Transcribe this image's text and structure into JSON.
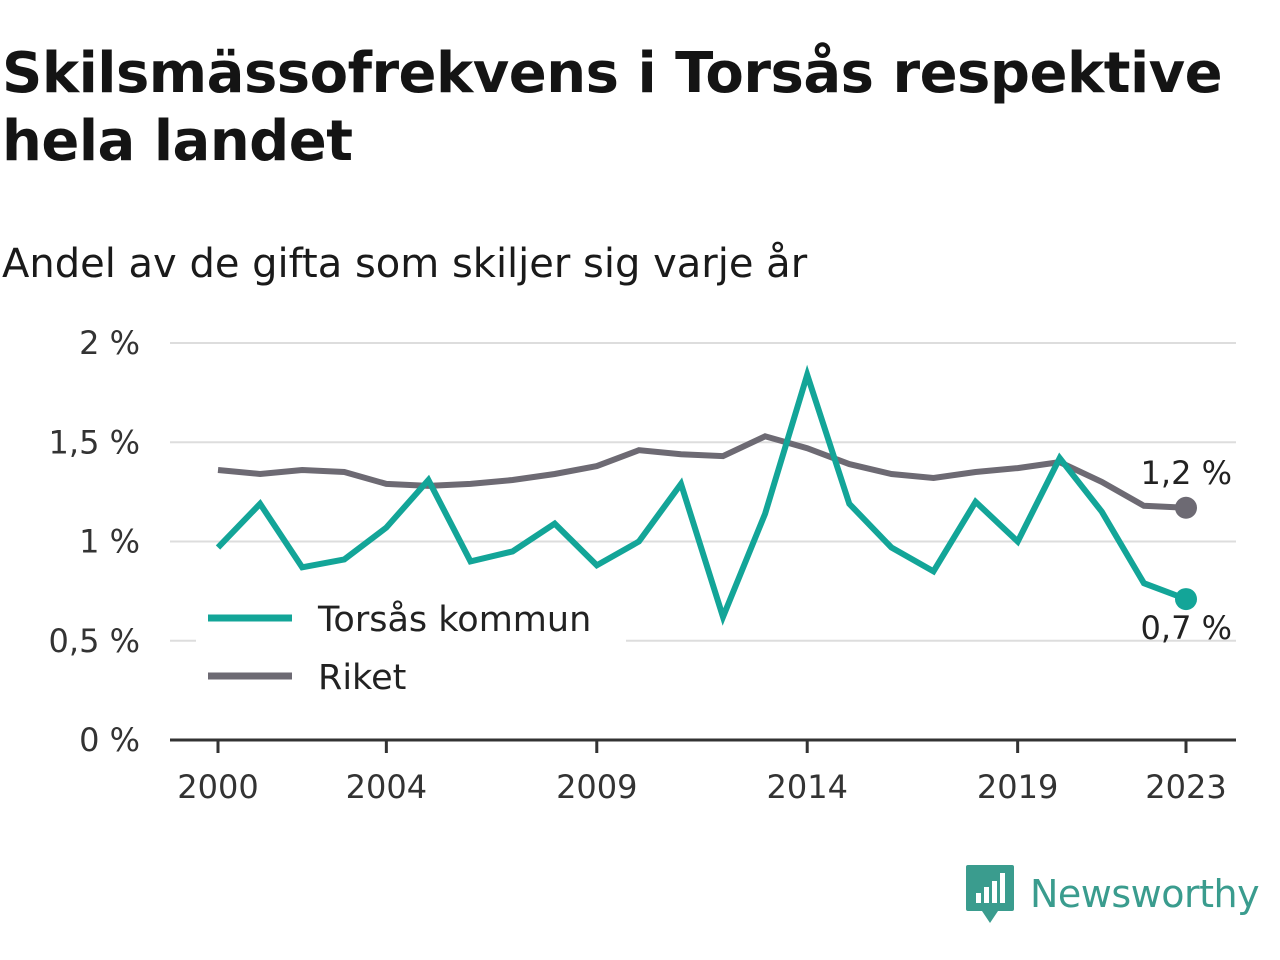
{
  "title": "Skilsmässofrekvens i Torsås respektive hela landet",
  "subtitle": "Andel av de gifta som skiljer sig varje år",
  "brand": "Newsworthy",
  "colors": {
    "torsas": "#13a598",
    "riket": "#6d6a73",
    "grid": "#dddddd",
    "axis": "#333333"
  },
  "chart_data": {
    "type": "line",
    "x": [
      2000,
      2001,
      2002,
      2003,
      2004,
      2005,
      2006,
      2007,
      2008,
      2009,
      2010,
      2011,
      2012,
      2013,
      2014,
      2015,
      2016,
      2017,
      2018,
      2019,
      2020,
      2021,
      2022,
      2023
    ],
    "x_tick_labels": [
      "2000",
      "2004",
      "2009",
      "2014",
      "2019",
      "2023"
    ],
    "y_tick_labels": [
      "0 %",
      "0,5 %",
      "1 %",
      "1,5 %",
      "2 %"
    ],
    "ylim": [
      0,
      2
    ],
    "xlim": [
      2000,
      2023
    ],
    "grid": true,
    "legend": "inside-left",
    "series": [
      {
        "name": "Torsås kommun",
        "values": [
          0.97,
          1.19,
          0.87,
          0.91,
          1.07,
          1.31,
          0.9,
          0.95,
          1.09,
          0.88,
          1.0,
          1.29,
          0.62,
          1.14,
          1.84,
          1.19,
          0.97,
          0.85,
          1.2,
          1.0,
          1.42,
          1.15,
          0.79,
          0.71
        ],
        "end_label": "0,7 %"
      },
      {
        "name": "Riket",
        "values": [
          1.36,
          1.34,
          1.36,
          1.35,
          1.29,
          1.28,
          1.29,
          1.31,
          1.34,
          1.38,
          1.46,
          1.44,
          1.43,
          1.53,
          1.47,
          1.39,
          1.34,
          1.32,
          1.35,
          1.37,
          1.4,
          1.3,
          1.18,
          1.17
        ],
        "end_label": "1,2 %"
      }
    ]
  }
}
